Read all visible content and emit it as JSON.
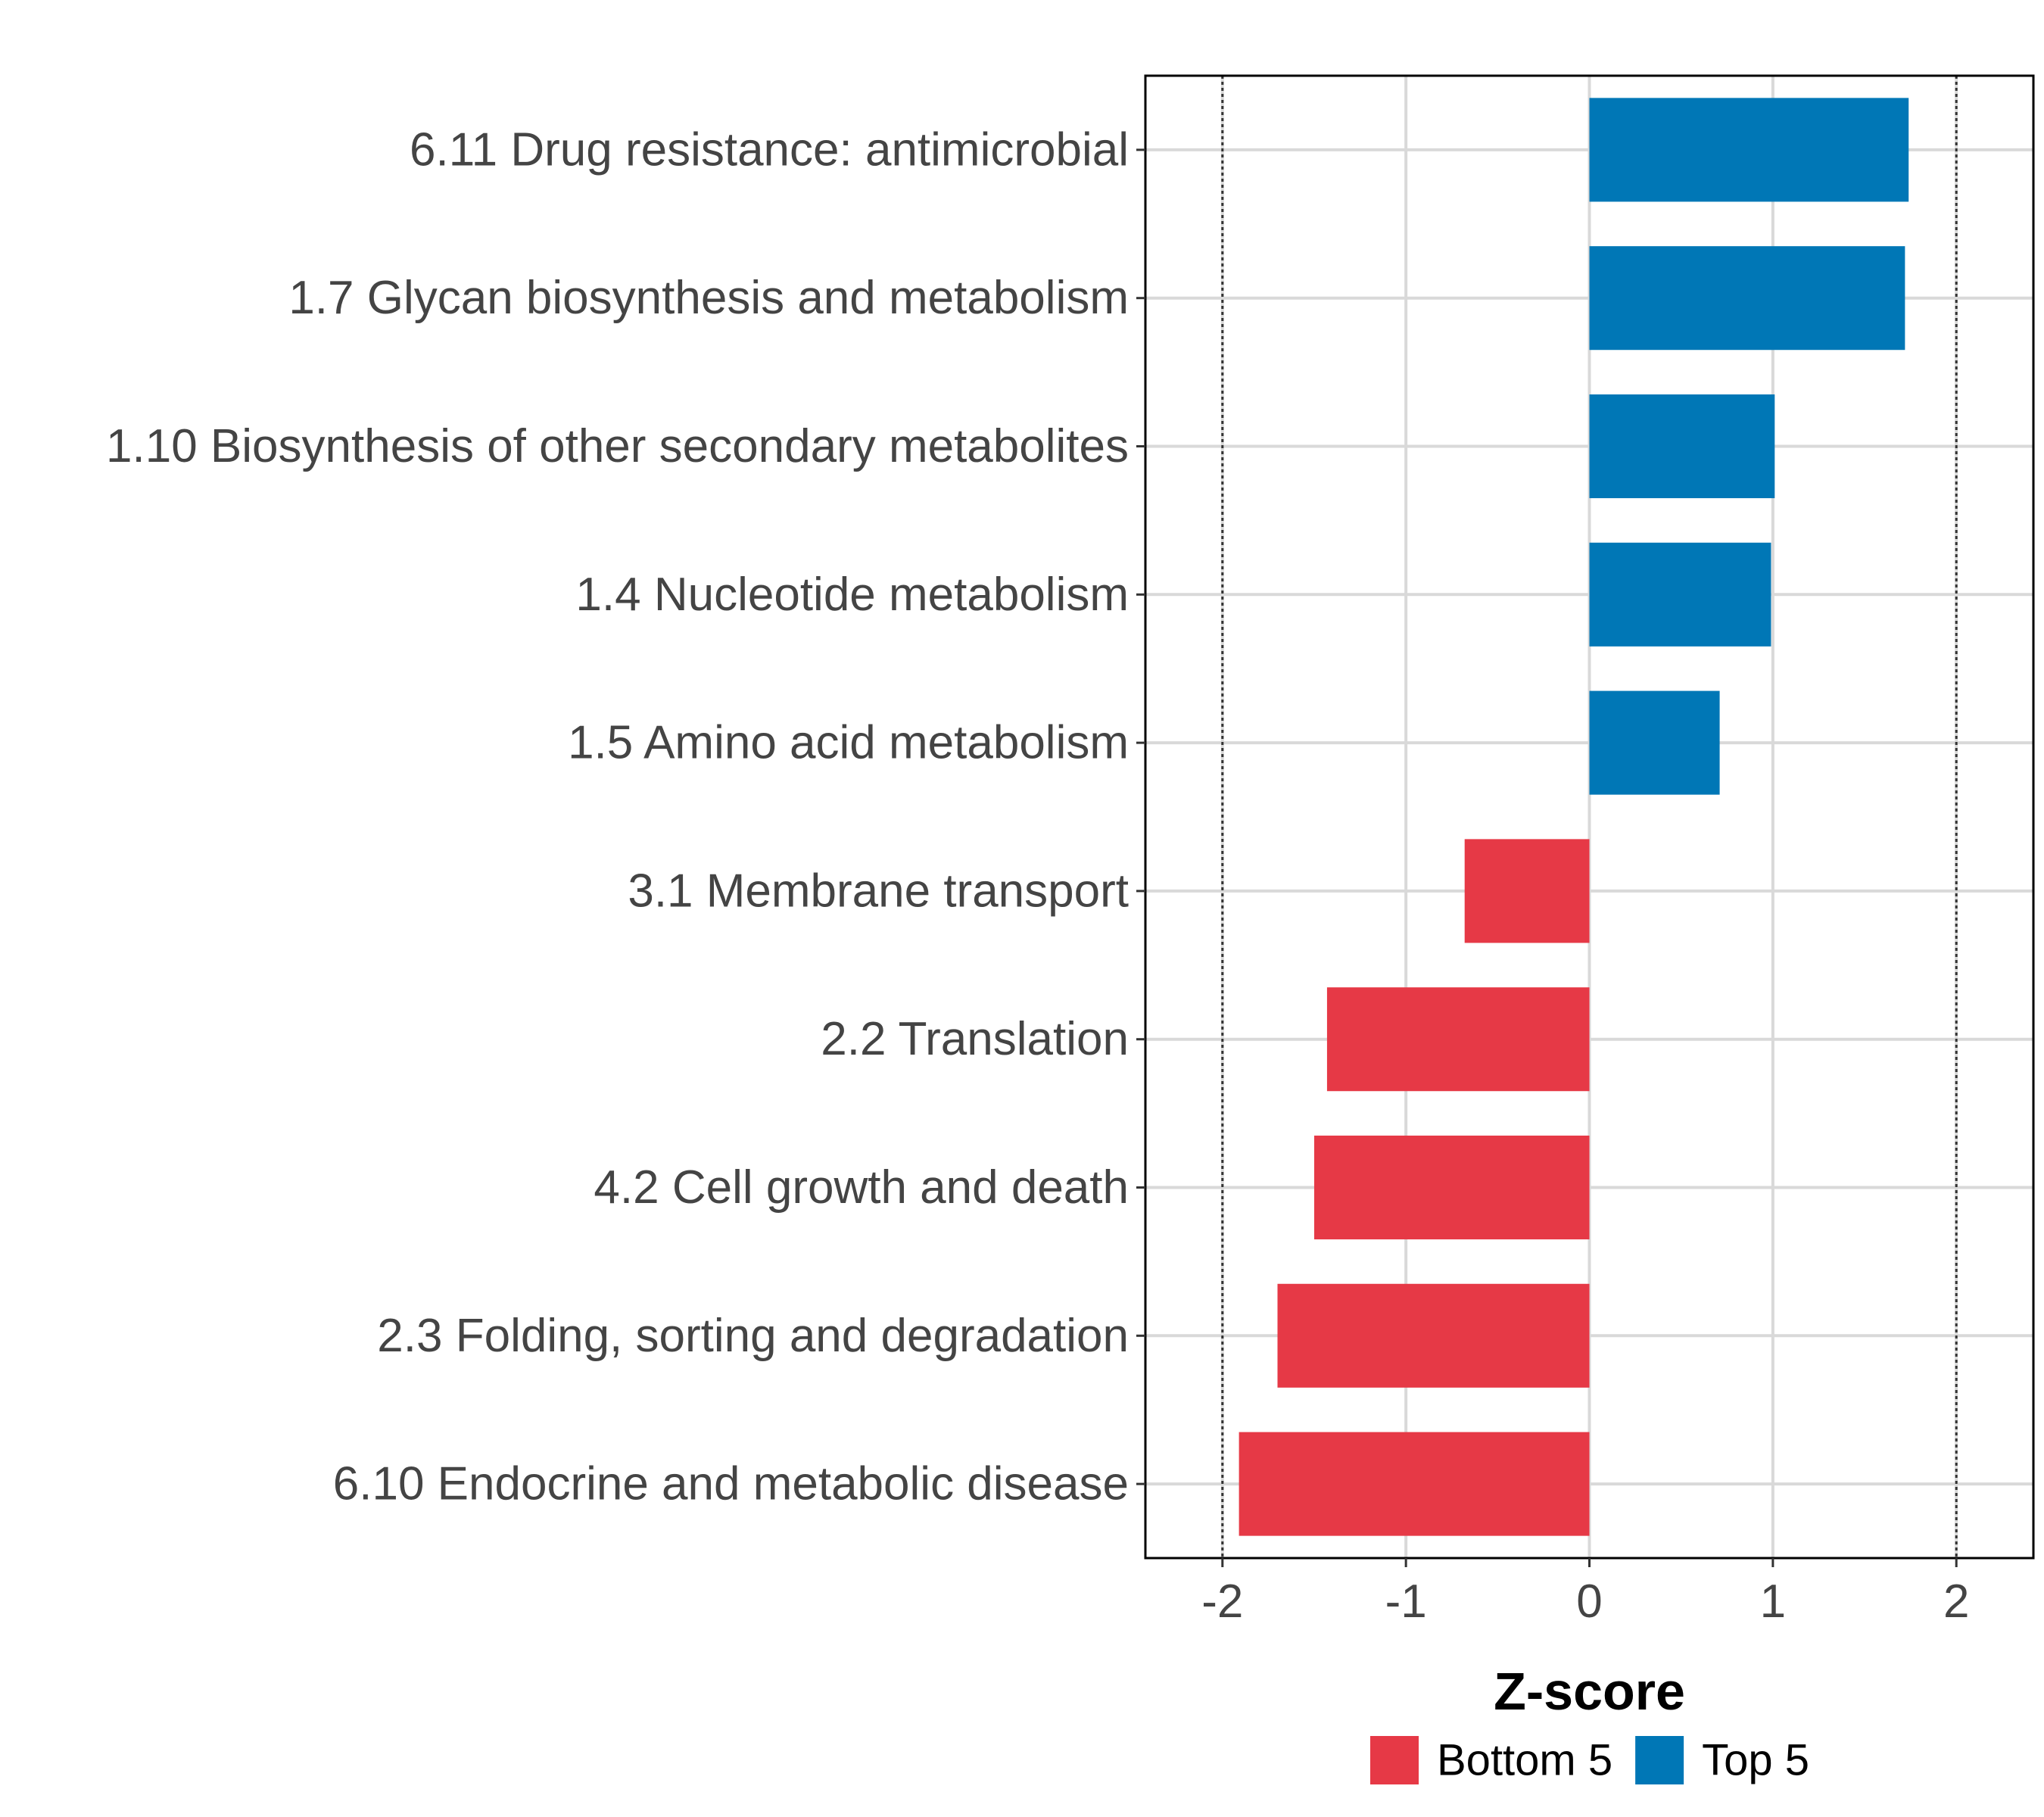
{
  "chart_data": {
    "type": "bar",
    "orientation": "horizontal",
    "categories": [
      "6.11 Drug resistance: antimicrobial",
      "1.7 Glycan biosynthesis and metabolism",
      "1.10 Biosynthesis of other secondary metabolites",
      "1.4 Nucleotide metabolism",
      "1.5 Amino acid metabolism",
      "3.1 Membrane transport",
      "2.2 Translation",
      "4.2 Cell growth and death",
      "2.3 Folding, sorting and degradation",
      "6.10 Endocrine and metabolic disease"
    ],
    "values": [
      1.74,
      1.72,
      1.01,
      0.99,
      0.71,
      -0.68,
      -1.43,
      -1.5,
      -1.7,
      -1.91
    ],
    "groups": [
      "Top 5",
      "Top 5",
      "Top 5",
      "Top 5",
      "Top 5",
      "Bottom 5",
      "Bottom 5",
      "Bottom 5",
      "Bottom 5",
      "Bottom 5"
    ],
    "xlabel": "Z-score",
    "ylabel": "",
    "xlim": [
      -2.42,
      2.42
    ],
    "xticks": [
      "-2",
      "-1",
      "0",
      "1",
      "2"
    ],
    "xtick_values": [
      -2,
      -1,
      0,
      1,
      2
    ],
    "reference_lines": [
      -2,
      2
    ],
    "grid": true,
    "legend": {
      "position": "bottom",
      "entries": [
        {
          "label": "Bottom 5",
          "color": "#E63946"
        },
        {
          "label": "Top 5",
          "color": "#0077B6"
        }
      ]
    },
    "colors": {
      "Top 5": "#0077B6",
      "Bottom 5": "#E63946"
    }
  }
}
